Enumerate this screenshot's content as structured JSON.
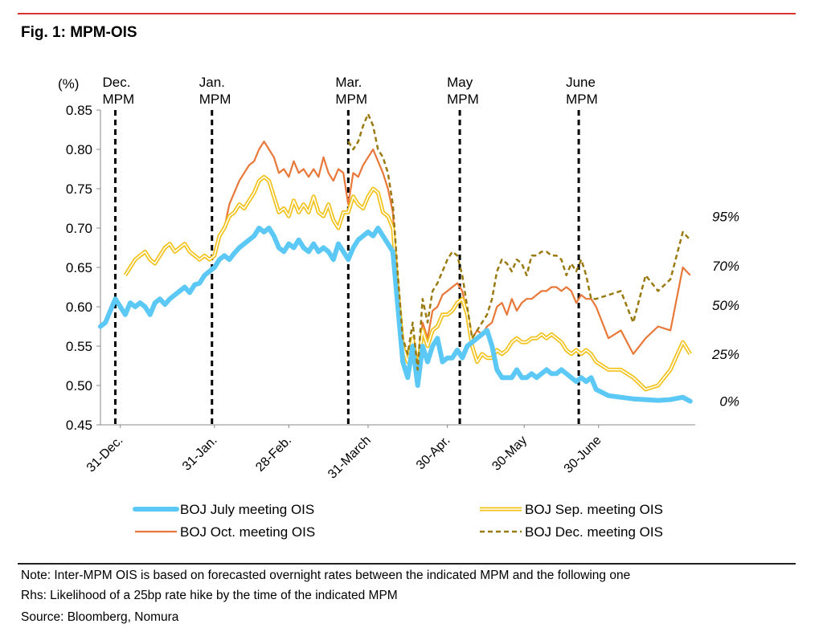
{
  "figure": {
    "title": "Fig. 1: MPM-OIS",
    "notes": [
      "Note: Inter-MPM OIS is based on forecasted overnight rates between the indicated MPM and the following one",
      "Rhs: Likelihood of a 25bp rate hike by the time of the indicated MPM",
      "Source: Bloomberg, Nomura"
    ]
  },
  "colors": {
    "july": "#5bc8f5",
    "sep_outer": "#f2c21b",
    "sep_inner": "#ffffff",
    "oct": "#e8783a",
    "dec": "#9a7a10",
    "vline": "#000000",
    "rule_red": "#d9332f"
  },
  "chart_data": {
    "type": "line",
    "title": "Fig. 1: MPM-OIS",
    "ylabel_left": "(%)",
    "ylim": [
      0.45,
      0.85
    ],
    "yticks": [
      0.85,
      0.8,
      0.75,
      0.7,
      0.65,
      0.6,
      0.55,
      0.5,
      0.45
    ],
    "ytick_labels": [
      "0.85",
      "0.80",
      "0.75",
      "0.70",
      "0.65",
      "0.60",
      "0.55",
      "0.50",
      "0.45"
    ],
    "right_axis_labels": [
      {
        "label": "95%",
        "at_value": 0.715
      },
      {
        "label": "70%",
        "at_value": 0.652
      },
      {
        "label": "50%",
        "at_value": 0.602
      },
      {
        "label": "25%",
        "at_value": 0.54
      },
      {
        "label": "0%",
        "at_value": 0.48
      }
    ],
    "x_domain": [
      0,
      240
    ],
    "xtick_labels": [
      {
        "label": "31-Dec.",
        "x": 8
      },
      {
        "label": "31-Jan.",
        "x": 46
      },
      {
        "label": "28-Feb.",
        "x": 76
      },
      {
        "label": "31-March",
        "x": 108
      },
      {
        "label": "30-Apr.",
        "x": 140
      },
      {
        "label": "30-May",
        "x": 171
      },
      {
        "label": "30-June",
        "x": 201
      }
    ],
    "mpm_lines": [
      {
        "label1": "Dec.",
        "label2": "MPM",
        "x": 6
      },
      {
        "label1": "Jan.",
        "label2": "MPM",
        "x": 45
      },
      {
        "label1": "Mar.",
        "label2": "MPM",
        "x": 100
      },
      {
        "label1": "May",
        "label2": "MPM",
        "x": 145
      },
      {
        "label1": "June",
        "label2": "MPM",
        "x": 193
      }
    ],
    "legend": [
      {
        "name": "BOJ July meeting OIS",
        "style": "thick-solid",
        "color_key": "july"
      },
      {
        "name": "BOJ Sep. meeting OIS",
        "style": "double",
        "color_key": "sep_outer"
      },
      {
        "name": "BOJ Oct. meeting OIS",
        "style": "solid",
        "color_key": "oct"
      },
      {
        "name": "BOJ Dec. meeting OIS",
        "style": "dashed",
        "color_key": "dec"
      }
    ],
    "series": [
      {
        "name": "BOJ July meeting OIS",
        "x": [
          0,
          2,
          4,
          6,
          8,
          10,
          12,
          14,
          16,
          18,
          20,
          22,
          24,
          26,
          28,
          30,
          32,
          34,
          36,
          38,
          40,
          42,
          44,
          46,
          48,
          50,
          52,
          54,
          56,
          58,
          60,
          62,
          64,
          66,
          68,
          70,
          72,
          74,
          76,
          78,
          80,
          82,
          84,
          86,
          88,
          90,
          92,
          94,
          96,
          98,
          100,
          102,
          104,
          106,
          108,
          110,
          112,
          114,
          116,
          118,
          120,
          122,
          124,
          126,
          128,
          130,
          132,
          134,
          136,
          138,
          140,
          142,
          144,
          146,
          148,
          150,
          152,
          154,
          156,
          158,
          160,
          162,
          164,
          166,
          168,
          170,
          172,
          174,
          176,
          178,
          180,
          182,
          184,
          186,
          188,
          190,
          192,
          194,
          196,
          198,
          200,
          205,
          210,
          215,
          220,
          225,
          230,
          235,
          238
        ],
        "values": [
          0.575,
          0.58,
          0.595,
          0.61,
          0.6,
          0.59,
          0.605,
          0.6,
          0.605,
          0.6,
          0.59,
          0.605,
          0.61,
          0.603,
          0.61,
          0.615,
          0.62,
          0.625,
          0.618,
          0.628,
          0.63,
          0.64,
          0.645,
          0.65,
          0.66,
          0.665,
          0.66,
          0.668,
          0.675,
          0.68,
          0.685,
          0.69,
          0.7,
          0.695,
          0.7,
          0.69,
          0.675,
          0.67,
          0.68,
          0.675,
          0.685,
          0.675,
          0.67,
          0.68,
          0.67,
          0.675,
          0.67,
          0.66,
          0.68,
          0.67,
          0.66,
          0.675,
          0.685,
          0.69,
          0.695,
          0.69,
          0.7,
          0.69,
          0.68,
          0.67,
          0.6,
          0.53,
          0.51,
          0.55,
          0.5,
          0.55,
          0.53,
          0.55,
          0.56,
          0.53,
          0.535,
          0.535,
          0.545,
          0.535,
          0.55,
          0.555,
          0.56,
          0.565,
          0.57,
          0.55,
          0.52,
          0.51,
          0.51,
          0.51,
          0.52,
          0.51,
          0.51,
          0.515,
          0.51,
          0.515,
          0.52,
          0.515,
          0.515,
          0.52,
          0.515,
          0.51,
          0.505,
          0.51,
          0.505,
          0.51,
          0.495,
          0.487,
          0.485,
          0.483,
          0.482,
          0.481,
          0.482,
          0.485,
          0.48
        ]
      },
      {
        "name": "BOJ Sep. meeting OIS",
        "x": [
          10,
          12,
          14,
          16,
          18,
          20,
          22,
          24,
          26,
          28,
          30,
          32,
          34,
          36,
          38,
          40,
          42,
          44,
          46,
          48,
          50,
          52,
          54,
          56,
          58,
          60,
          62,
          64,
          66,
          68,
          70,
          72,
          74,
          76,
          78,
          80,
          82,
          84,
          86,
          88,
          90,
          92,
          94,
          96,
          98,
          100,
          102,
          104,
          106,
          108,
          110,
          112,
          114,
          116,
          118,
          120,
          122,
          124,
          126,
          128,
          130,
          132,
          134,
          136,
          138,
          140,
          142,
          144,
          146,
          148,
          150,
          152,
          154,
          156,
          158,
          160,
          162,
          164,
          166,
          168,
          170,
          172,
          174,
          176,
          178,
          180,
          182,
          184,
          186,
          188,
          190,
          192,
          194,
          196,
          198,
          200,
          205,
          210,
          215,
          220,
          225,
          230,
          235,
          238
        ],
        "values": [
          0.64,
          0.65,
          0.66,
          0.665,
          0.67,
          0.66,
          0.655,
          0.665,
          0.675,
          0.68,
          0.67,
          0.675,
          0.68,
          0.67,
          0.665,
          0.66,
          0.665,
          0.66,
          0.665,
          0.69,
          0.7,
          0.715,
          0.72,
          0.73,
          0.725,
          0.735,
          0.745,
          0.76,
          0.765,
          0.76,
          0.74,
          0.72,
          0.725,
          0.715,
          0.735,
          0.72,
          0.73,
          0.72,
          0.74,
          0.72,
          0.715,
          0.73,
          0.71,
          0.7,
          0.72,
          0.72,
          0.74,
          0.73,
          0.725,
          0.74,
          0.75,
          0.745,
          0.72,
          0.715,
          0.7,
          0.62,
          0.55,
          0.53,
          0.56,
          0.52,
          0.57,
          0.55,
          0.57,
          0.575,
          0.59,
          0.59,
          0.595,
          0.605,
          0.61,
          0.59,
          0.55,
          0.53,
          0.54,
          0.535,
          0.535,
          0.545,
          0.54,
          0.545,
          0.555,
          0.56,
          0.555,
          0.555,
          0.56,
          0.56,
          0.565,
          0.56,
          0.565,
          0.56,
          0.555,
          0.545,
          0.54,
          0.545,
          0.54,
          0.545,
          0.54,
          0.53,
          0.52,
          0.52,
          0.51,
          0.495,
          0.5,
          0.52,
          0.555,
          0.54
        ]
      },
      {
        "name": "BOJ Oct. meeting OIS",
        "x": [
          48,
          50,
          52,
          54,
          56,
          58,
          60,
          62,
          64,
          66,
          68,
          70,
          72,
          74,
          76,
          78,
          80,
          82,
          84,
          86,
          88,
          90,
          92,
          94,
          96,
          98,
          100,
          102,
          104,
          106,
          108,
          110,
          112,
          114,
          116,
          118,
          120,
          122,
          124,
          126,
          128,
          130,
          132,
          134,
          136,
          138,
          140,
          142,
          144,
          146,
          148,
          150,
          152,
          154,
          156,
          158,
          160,
          162,
          164,
          166,
          168,
          170,
          172,
          174,
          176,
          178,
          180,
          182,
          184,
          186,
          188,
          190,
          192,
          194,
          196,
          198,
          200,
          205,
          210,
          215,
          220,
          225,
          230,
          235,
          238
        ],
        "values": [
          0.69,
          0.7,
          0.73,
          0.745,
          0.76,
          0.77,
          0.78,
          0.785,
          0.8,
          0.81,
          0.8,
          0.79,
          0.77,
          0.775,
          0.765,
          0.785,
          0.77,
          0.775,
          0.765,
          0.775,
          0.765,
          0.79,
          0.77,
          0.76,
          0.775,
          0.77,
          0.73,
          0.77,
          0.765,
          0.78,
          0.79,
          0.8,
          0.785,
          0.77,
          0.75,
          0.72,
          0.62,
          0.53,
          0.52,
          0.56,
          0.52,
          0.58,
          0.56,
          0.595,
          0.6,
          0.615,
          0.62,
          0.625,
          0.63,
          0.62,
          0.59,
          0.56,
          0.57,
          0.565,
          0.575,
          0.58,
          0.6,
          0.605,
          0.59,
          0.61,
          0.595,
          0.605,
          0.61,
          0.61,
          0.615,
          0.62,
          0.62,
          0.625,
          0.625,
          0.62,
          0.625,
          0.62,
          0.605,
          0.615,
          0.61,
          0.61,
          0.6,
          0.56,
          0.57,
          0.54,
          0.56,
          0.575,
          0.57,
          0.65,
          0.64
        ]
      },
      {
        "name": "BOJ Dec. meeting OIS",
        "x": [
          100,
          102,
          104,
          106,
          108,
          110,
          112,
          114,
          116,
          118,
          120,
          122,
          124,
          126,
          128,
          130,
          132,
          134,
          136,
          138,
          140,
          142,
          144,
          146,
          148,
          150,
          152,
          154,
          156,
          158,
          160,
          162,
          164,
          166,
          168,
          170,
          172,
          174,
          176,
          178,
          180,
          182,
          184,
          186,
          188,
          190,
          192,
          194,
          196,
          198,
          200,
          205,
          210,
          215,
          220,
          225,
          230,
          235,
          238
        ],
        "values": [
          0.81,
          0.8,
          0.81,
          0.83,
          0.845,
          0.83,
          0.8,
          0.79,
          0.77,
          0.73,
          0.64,
          0.56,
          0.54,
          0.58,
          0.52,
          0.61,
          0.58,
          0.62,
          0.63,
          0.645,
          0.66,
          0.67,
          0.665,
          0.64,
          0.6,
          0.56,
          0.57,
          0.58,
          0.59,
          0.61,
          0.645,
          0.66,
          0.655,
          0.645,
          0.66,
          0.655,
          0.64,
          0.665,
          0.665,
          0.67,
          0.67,
          0.665,
          0.665,
          0.66,
          0.64,
          0.655,
          0.645,
          0.66,
          0.64,
          0.61,
          0.61,
          0.615,
          0.62,
          0.58,
          0.64,
          0.62,
          0.635,
          0.695,
          0.685
        ]
      }
    ]
  }
}
